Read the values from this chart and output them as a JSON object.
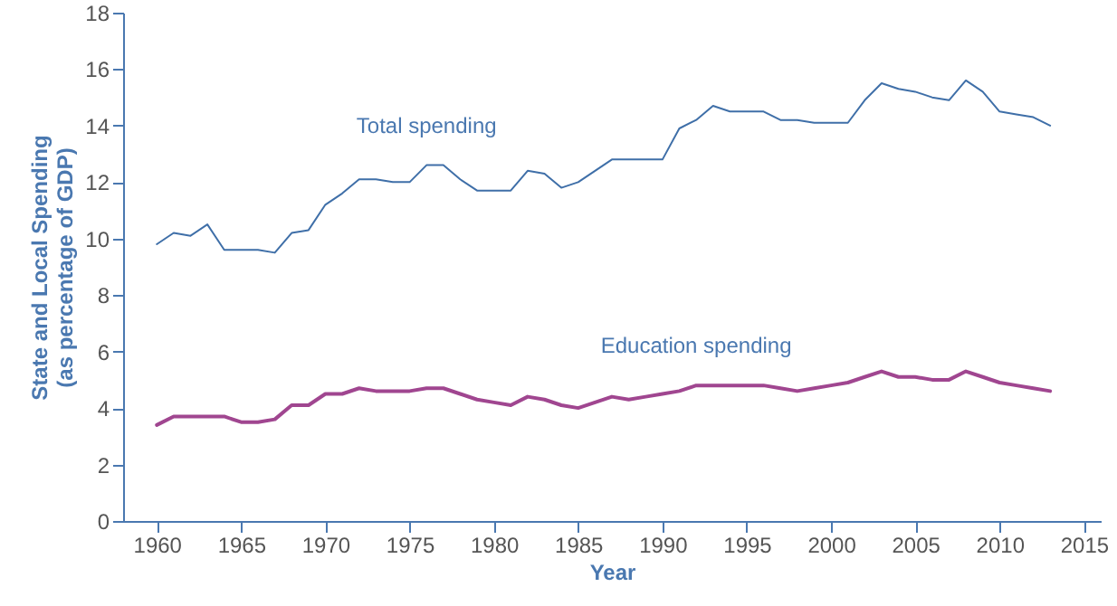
{
  "chart_data": {
    "type": "line",
    "xlabel": "Year",
    "ylabel": "State and Local Spending\n(as percentage of GDP)",
    "x": [
      1960,
      1961,
      1962,
      1963,
      1964,
      1965,
      1966,
      1967,
      1968,
      1969,
      1970,
      1971,
      1972,
      1973,
      1974,
      1975,
      1976,
      1977,
      1978,
      1979,
      1980,
      1981,
      1982,
      1983,
      1984,
      1985,
      1986,
      1987,
      1988,
      1989,
      1990,
      1991,
      1992,
      1993,
      1994,
      1995,
      1996,
      1997,
      1998,
      1999,
      2000,
      2001,
      2002,
      2003,
      2004,
      2005,
      2006,
      2007,
      2008,
      2009,
      2010,
      2011,
      2012,
      2013
    ],
    "series": [
      {
        "name": "Total spending",
        "color": "#3f6fa8",
        "values": [
          9.8,
          10.2,
          10.1,
          10.5,
          9.6,
          9.6,
          9.6,
          9.5,
          10.2,
          10.3,
          11.2,
          11.6,
          12.1,
          12.1,
          12.0,
          12.0,
          12.6,
          12.6,
          12.1,
          11.7,
          11.7,
          11.7,
          12.4,
          12.3,
          11.8,
          12.0,
          12.4,
          12.8,
          12.8,
          12.8,
          12.8,
          13.9,
          14.2,
          14.7,
          14.5,
          14.5,
          14.5,
          14.2,
          14.2,
          14.1,
          14.1,
          14.1,
          14.9,
          15.5,
          15.3,
          15.2,
          15.0,
          14.9,
          15.6,
          15.2,
          14.5,
          14.4,
          14.3,
          14.0
        ]
      },
      {
        "name": "Education spending",
        "color": "#a04690",
        "values": [
          3.4,
          3.7,
          3.7,
          3.7,
          3.7,
          3.5,
          3.5,
          3.6,
          4.1,
          4.1,
          4.5,
          4.5,
          4.7,
          4.6,
          4.6,
          4.6,
          4.7,
          4.7,
          4.5,
          4.3,
          4.2,
          4.1,
          4.4,
          4.3,
          4.1,
          4.0,
          4.2,
          4.4,
          4.3,
          4.4,
          4.5,
          4.6,
          4.8,
          4.8,
          4.8,
          4.8,
          4.8,
          4.7,
          4.6,
          4.7,
          4.8,
          4.9,
          5.1,
          5.3,
          5.1,
          5.1,
          5.0,
          5.0,
          5.3,
          5.1,
          4.9,
          4.8,
          4.7,
          4.6
        ]
      }
    ],
    "xlim": [
      1958,
      2016
    ],
    "xticks": [
      1960,
      1965,
      1970,
      1975,
      1980,
      1985,
      1990,
      1995,
      2000,
      2005,
      2010,
      2015
    ],
    "ylim": [
      0,
      18
    ],
    "yticks": [
      0,
      2,
      4,
      6,
      8,
      10,
      12,
      14,
      16,
      18
    ],
    "grid": false,
    "marker": "none",
    "line_style": "solid",
    "legend": false
  }
}
